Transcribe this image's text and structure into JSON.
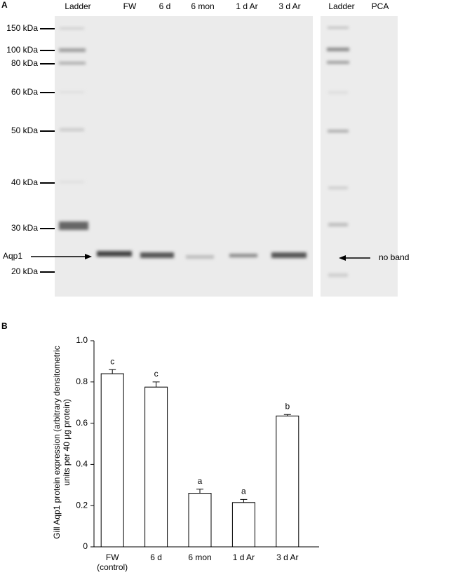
{
  "panel_a": {
    "label": "A",
    "lanes": [
      "Ladder",
      "FW",
      "6 d",
      "6 mon",
      "1 d Ar",
      "3 d Ar",
      "Ladder",
      "PCA"
    ],
    "markers": [
      "150 kDa",
      "100 kDa",
      "80 kDa",
      "60 kDa",
      "50 kDa",
      "40 kDa",
      "30 kDa",
      "20 kDa"
    ],
    "band_label": "Aqp1",
    "no_band_label": "no band"
  },
  "chart_data": {
    "type": "bar",
    "panel_label": "B",
    "ylabel": "Gill Aqp1 protein expression (arbitrary densitometric units per 40 µg protein)",
    "categories": [
      "FW\n(control)",
      "6 d",
      "6 mon",
      "1 d Ar",
      "3 d Ar"
    ],
    "values": [
      0.84,
      0.775,
      0.26,
      0.215,
      0.635
    ],
    "errors": [
      0.02,
      0.025,
      0.02,
      0.015,
      0.007
    ],
    "annotations": [
      "c",
      "c",
      "a",
      "a",
      "b"
    ],
    "color": "#ffffff",
    "ylim": [
      0,
      1
    ],
    "yticks": [
      0,
      0.2,
      0.4,
      0.6,
      0.8,
      {
        "value": 1,
        "label": "1.0"
      }
    ]
  }
}
